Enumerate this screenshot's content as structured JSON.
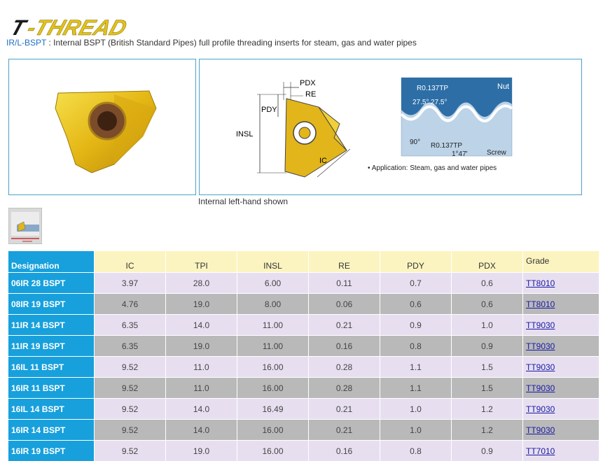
{
  "header": {
    "logo_text": "T-THREAD",
    "code": "IR/L-BSPT",
    "separator": " : ",
    "description": "Internal BSPT (British Standard Pipes) full profile threading inserts for steam, gas and water pipes"
  },
  "insert_diagram": {
    "labels": {
      "pdx": "PDX",
      "re": "RE",
      "pdy": "PDY",
      "insl": "INSL",
      "ic": "IC"
    }
  },
  "thread_profile": {
    "nut_label": "Nut",
    "screw_label": "Screw",
    "radius_top": "R0.137TP",
    "radius_bottom": "R0.137TP",
    "angle_left": "27.5°",
    "angle_right": "27.5°",
    "angle_90": "90°",
    "taper": "1°47'",
    "application": "• Application: Steam, gas and water pipes"
  },
  "caption": "Internal left-hand shown",
  "table": {
    "headers": [
      "Designation",
      "IC",
      "TPI",
      "INSL",
      "RE",
      "PDY",
      "PDX",
      "Grade"
    ],
    "rows": [
      {
        "designation": "06IR 28 BSPT",
        "ic": "3.97",
        "tpi": "28.0",
        "insl": "6.00",
        "re": "0.11",
        "pdy": "0.7",
        "pdx": "0.6",
        "grade": "TT8010"
      },
      {
        "designation": "08IR 19 BSPT",
        "ic": "4.76",
        "tpi": "19.0",
        "insl": "8.00",
        "re": "0.06",
        "pdy": "0.6",
        "pdx": "0.6",
        "grade": "TT8010"
      },
      {
        "designation": "11IR 14 BSPT",
        "ic": "6.35",
        "tpi": "14.0",
        "insl": "11.00",
        "re": "0.21",
        "pdy": "0.9",
        "pdx": "1.0",
        "grade": "TT9030"
      },
      {
        "designation": "11IR 19 BSPT",
        "ic": "6.35",
        "tpi": "19.0",
        "insl": "11.00",
        "re": "0.16",
        "pdy": "0.8",
        "pdx": "0.9",
        "grade": "TT9030"
      },
      {
        "designation": "16IL 11 BSPT",
        "ic": "9.52",
        "tpi": "11.0",
        "insl": "16.00",
        "re": "0.28",
        "pdy": "1.1",
        "pdx": "1.5",
        "grade": "TT9030"
      },
      {
        "designation": "16IR 11 BSPT",
        "ic": "9.52",
        "tpi": "11.0",
        "insl": "16.00",
        "re": "0.28",
        "pdy": "1.1",
        "pdx": "1.5",
        "grade": "TT9030"
      },
      {
        "designation": "16IL 14 BSPT",
        "ic": "9.52",
        "tpi": "14.0",
        "insl": "16.49",
        "re": "0.21",
        "pdy": "1.0",
        "pdx": "1.2",
        "grade": "TT9030"
      },
      {
        "designation": "16IR 14 BSPT",
        "ic": "9.52",
        "tpi": "14.0",
        "insl": "16.00",
        "re": "0.21",
        "pdy": "1.0",
        "pdx": "1.2",
        "grade": "TT9030"
      },
      {
        "designation": "16IR 19 BSPT",
        "ic": "9.52",
        "tpi": "19.0",
        "insl": "16.00",
        "re": "0.16",
        "pdy": "0.8",
        "pdx": "0.9",
        "grade": "TT7010"
      }
    ]
  }
}
